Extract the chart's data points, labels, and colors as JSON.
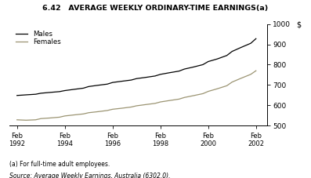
{
  "title": "6.42   AVERAGE WEEKLY ORDINARY-TIME EARNINGS(a)",
  "ylabel_right": "$",
  "ylim": [
    500,
    1000
  ],
  "yticks": [
    500,
    600,
    700,
    800,
    900,
    1000
  ],
  "xtick_years": [
    1992,
    1994,
    1996,
    1998,
    2000,
    2002
  ],
  "males_data": [
    [
      1992.12,
      648
    ],
    [
      1992.5,
      651
    ],
    [
      1992.9,
      654
    ],
    [
      1993.12,
      659
    ],
    [
      1993.5,
      663
    ],
    [
      1993.9,
      667
    ],
    [
      1994.12,
      672
    ],
    [
      1994.5,
      678
    ],
    [
      1994.9,
      684
    ],
    [
      1995.12,
      692
    ],
    [
      1995.5,
      698
    ],
    [
      1995.9,
      704
    ],
    [
      1996.12,
      712
    ],
    [
      1996.5,
      718
    ],
    [
      1996.9,
      724
    ],
    [
      1997.12,
      731
    ],
    [
      1997.5,
      737
    ],
    [
      1997.9,
      744
    ],
    [
      1998.12,
      752
    ],
    [
      1998.5,
      760
    ],
    [
      1998.9,
      768
    ],
    [
      1999.12,
      778
    ],
    [
      1999.5,
      788
    ],
    [
      1999.9,
      800
    ],
    [
      2000.12,
      815
    ],
    [
      2000.5,
      828
    ],
    [
      2000.9,
      845
    ],
    [
      2001.12,
      865
    ],
    [
      2001.5,
      885
    ],
    [
      2001.9,
      905
    ],
    [
      2002.12,
      928
    ]
  ],
  "females_data": [
    [
      1992.12,
      528
    ],
    [
      1992.5,
      526
    ],
    [
      1992.9,
      528
    ],
    [
      1993.12,
      534
    ],
    [
      1993.5,
      537
    ],
    [
      1993.9,
      541
    ],
    [
      1994.12,
      547
    ],
    [
      1994.5,
      552
    ],
    [
      1994.9,
      557
    ],
    [
      1995.12,
      563
    ],
    [
      1995.5,
      568
    ],
    [
      1995.9,
      574
    ],
    [
      1996.12,
      580
    ],
    [
      1996.5,
      585
    ],
    [
      1996.9,
      591
    ],
    [
      1997.12,
      597
    ],
    [
      1997.5,
      603
    ],
    [
      1997.9,
      609
    ],
    [
      1998.12,
      616
    ],
    [
      1998.5,
      623
    ],
    [
      1998.9,
      630
    ],
    [
      1999.12,
      638
    ],
    [
      1999.5,
      647
    ],
    [
      1999.9,
      657
    ],
    [
      2000.12,
      668
    ],
    [
      2000.5,
      681
    ],
    [
      2000.9,
      696
    ],
    [
      2001.12,
      714
    ],
    [
      2001.5,
      733
    ],
    [
      2001.9,
      752
    ],
    [
      2002.12,
      770
    ]
  ],
  "males_color": "#000000",
  "females_color": "#9b9472",
  "background_color": "#ffffff",
  "note1": "(a) For full-time adult employees.",
  "note2": "Source: Average Weekly Earnings, Australia (6302.0).",
  "legend_males": "Males",
  "legend_females": "Females"
}
